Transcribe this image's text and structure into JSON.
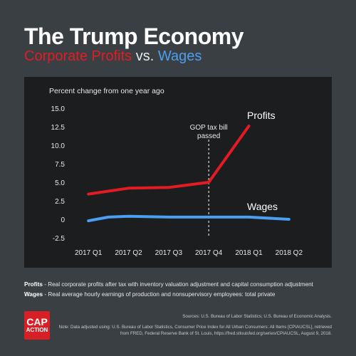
{
  "header": {
    "title": "The Trump Economy",
    "subtitle_profits": "Corporate Profits",
    "subtitle_vs": "vs.",
    "subtitle_wages": "Wages"
  },
  "colors": {
    "background": "#3a3f44",
    "panel": "#1b1d1f",
    "profits": "#e31c23",
    "wages": "#4b9ff0"
  },
  "chart_data": {
    "type": "line",
    "ylabel": "Percent change from one year ago",
    "categories": [
      "2017 Q1",
      "2017 Q2",
      "2017 Q3",
      "2017 Q4",
      "2018 Q1",
      "2018 Q2"
    ],
    "yticks": [
      "15.0",
      "12.5",
      "10.0",
      "7.5",
      "5.0",
      "2.5",
      "0",
      "-2.5"
    ],
    "ylim": [
      -2.5,
      15.0
    ],
    "grid": false,
    "series": [
      {
        "name": "Profits",
        "x": [
          0,
          1,
          2,
          3,
          4
        ],
        "values": [
          3.4,
          4.2,
          4.3,
          5.0,
          12.6
        ]
      },
      {
        "name": "Wages",
        "x": [
          0,
          0.5,
          1,
          2,
          3,
          4,
          5
        ],
        "values": [
          -0.2,
          0.3,
          0.4,
          0.3,
          0.3,
          0.3,
          0.0
        ]
      }
    ],
    "annotation": {
      "text_line1": "GOP tax bill",
      "text_line2": "passed",
      "at_category": "2017 Q4"
    }
  },
  "legend_notes": {
    "profits_label": "Profits",
    "profits_text": " - Real corporate profits after tax with inventory valuation adjustment and capital consumption adjustment",
    "wages_label": "Wages",
    "wages_text": " - Real average hourly earnings of production and nonsupervisory employees: total private"
  },
  "logo": {
    "line1": "CAP",
    "line2": "ACTION"
  },
  "footer": {
    "sources": "Sources: U.S. Bureau of Labor Statistics; U.S. Bureau of Economic Analysis.",
    "note": "Note: Data adjusted using: U.S. Bureau of Labor Statistics, Consumer Price Index for All Urban Consumers: All Items [CPIAUCSL], retrieved from FRED, Federal Reserve Bank of St. Louis, https://fred.stlouisfed.org/series/CPIAUCSL, August 9, 2018."
  }
}
